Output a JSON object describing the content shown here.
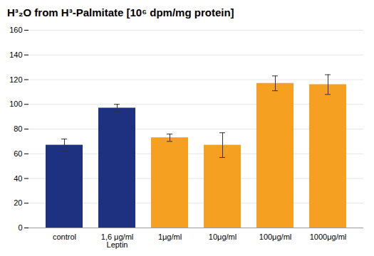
{
  "chart_data": {
    "type": "bar",
    "title": "H³₂O from H³-Palmitate [10⁶ dpm/mg protein]",
    "categories": [
      "control",
      "1,6 μg/ml\nLeptin",
      "1μg/ml",
      "10μg/ml",
      "100μg/ml",
      "1000μg/ml"
    ],
    "values": [
      67,
      97,
      73,
      67,
      117,
      116
    ],
    "errors": [
      5,
      3,
      3,
      10,
      6,
      8
    ],
    "colors": [
      "#1e3080",
      "#1e3080",
      "#f5a020",
      "#f5a020",
      "#f5a020",
      "#f5a020"
    ],
    "ylim": [
      0,
      160
    ],
    "yticks": [
      0,
      20,
      40,
      60,
      80,
      100,
      120,
      140,
      160
    ],
    "grid": true
  }
}
